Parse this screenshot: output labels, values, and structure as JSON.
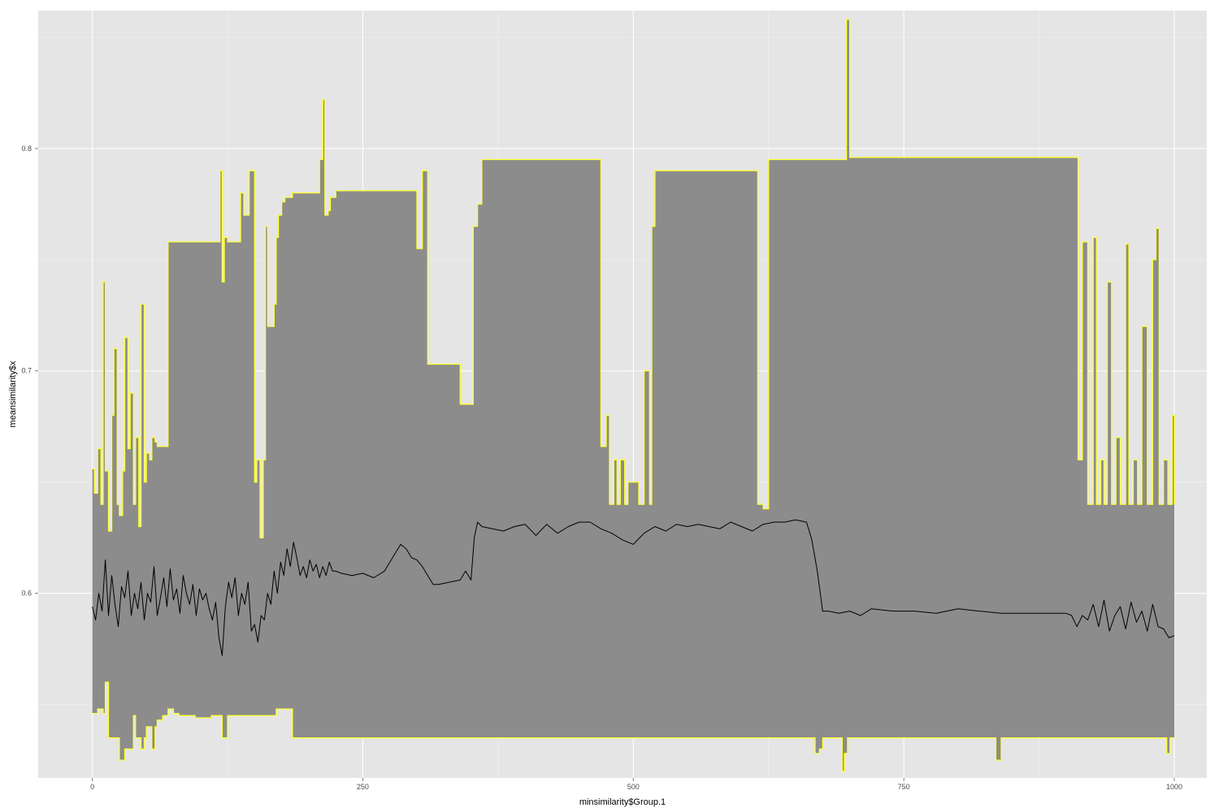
{
  "chart_data": {
    "type": "area",
    "xlabel": "minsimilarity$Group.1",
    "ylabel": "meansimilarity$x",
    "xlim": [
      -50,
      1030
    ],
    "ylim": [
      0.517,
      0.862
    ],
    "x_ticks": [
      0,
      250,
      500,
      750,
      1000
    ],
    "x_tick_labels": [
      "0",
      "250",
      "500",
      "750",
      "1000"
    ],
    "y_ticks": [
      0.6,
      0.7,
      0.8
    ],
    "y_tick_labels": [
      "0.6",
      "0.7",
      "0.8"
    ],
    "grid": true,
    "background_color": "#e5e5e5",
    "ribbon_fill_color": "#8c8c8c",
    "ribbon_outline_color": "#ffff33",
    "line_color": "#000000",
    "series": [
      {
        "role": "ribbon-upper",
        "x": [
          0,
          2,
          5,
          8,
          10,
          12,
          15,
          18,
          20,
          23,
          25,
          28,
          30,
          33,
          35,
          38,
          40,
          43,
          45,
          48,
          50,
          53,
          55,
          58,
          60,
          63,
          65,
          70,
          115,
          118,
          120,
          122,
          125,
          135,
          137,
          140,
          145,
          150,
          152,
          155,
          158,
          160,
          162,
          165,
          168,
          170,
          172,
          175,
          178,
          180,
          185,
          200,
          210,
          213,
          215,
          218,
          220,
          225,
          298,
          300,
          305,
          308,
          310,
          320,
          340,
          348,
          352,
          356,
          360,
          365,
          468,
          470,
          475,
          478,
          482,
          485,
          488,
          492,
          495,
          505,
          510,
          515,
          517,
          520,
          580,
          610,
          615,
          620,
          625,
          630,
          690,
          694,
          697,
          700,
          850,
          908,
          911,
          915,
          920,
          925,
          928,
          932,
          935,
          938,
          942,
          946,
          950,
          955,
          958,
          962,
          966,
          970,
          975,
          980,
          983,
          986,
          990,
          994,
          998,
          1000
        ],
        "y": [
          0.656,
          0.645,
          0.665,
          0.64,
          0.74,
          0.655,
          0.628,
          0.68,
          0.71,
          0.64,
          0.635,
          0.655,
          0.715,
          0.665,
          0.69,
          0.64,
          0.67,
          0.63,
          0.73,
          0.65,
          0.663,
          0.66,
          0.67,
          0.668,
          0.666,
          0.666,
          0.666,
          0.758,
          0.758,
          0.79,
          0.74,
          0.76,
          0.758,
          0.758,
          0.78,
          0.77,
          0.79,
          0.65,
          0.66,
          0.625,
          0.66,
          0.765,
          0.72,
          0.72,
          0.73,
          0.76,
          0.77,
          0.776,
          0.778,
          0.778,
          0.78,
          0.78,
          0.795,
          0.822,
          0.77,
          0.772,
          0.778,
          0.781,
          0.781,
          0.755,
          0.79,
          0.79,
          0.703,
          0.703,
          0.685,
          0.685,
          0.765,
          0.775,
          0.795,
          0.795,
          0.795,
          0.666,
          0.68,
          0.64,
          0.66,
          0.64,
          0.66,
          0.64,
          0.65,
          0.64,
          0.7,
          0.64,
          0.765,
          0.79,
          0.79,
          0.79,
          0.64,
          0.638,
          0.795,
          0.795,
          0.795,
          0.795,
          0.858,
          0.796,
          0.796,
          0.796,
          0.66,
          0.758,
          0.64,
          0.76,
          0.64,
          0.66,
          0.64,
          0.74,
          0.64,
          0.67,
          0.64,
          0.757,
          0.64,
          0.66,
          0.64,
          0.72,
          0.64,
          0.75,
          0.764,
          0.64,
          0.66,
          0.64,
          0.68,
          0.64
        ],
        "_name": ""
      },
      {
        "role": "ribbon-lower",
        "x": [
          0,
          5,
          10,
          12,
          15,
          20,
          25,
          30,
          35,
          38,
          40,
          45,
          48,
          50,
          55,
          58,
          60,
          65,
          70,
          75,
          80,
          90,
          95,
          100,
          110,
          115,
          120,
          125,
          140,
          150,
          160,
          170,
          180,
          185,
          200,
          400,
          600,
          660,
          665,
          668,
          670,
          672,
          675,
          690,
          693,
          695,
          698,
          700,
          800,
          830,
          835,
          840,
          900,
          980,
          990,
          993,
          996,
          1000
        ],
        "y": [
          0.546,
          0.548,
          0.546,
          0.56,
          0.535,
          0.535,
          0.525,
          0.53,
          0.53,
          0.545,
          0.535,
          0.53,
          0.535,
          0.54,
          0.53,
          0.54,
          0.543,
          0.545,
          0.548,
          0.546,
          0.545,
          0.545,
          0.544,
          0.544,
          0.545,
          0.545,
          0.535,
          0.545,
          0.545,
          0.545,
          0.545,
          0.548,
          0.548,
          0.535,
          0.535,
          0.535,
          0.535,
          0.535,
          0.535,
          0.528,
          0.528,
          0.53,
          0.535,
          0.535,
          0.52,
          0.528,
          0.535,
          0.535,
          0.535,
          0.535,
          0.525,
          0.535,
          0.535,
          0.535,
          0.535,
          0.528,
          0.535,
          0.535
        ],
        "_name": ""
      },
      {
        "role": "line",
        "x": [
          0,
          3,
          6,
          9,
          12,
          15,
          18,
          21,
          24,
          27,
          30,
          33,
          36,
          39,
          42,
          45,
          48,
          51,
          54,
          57,
          60,
          63,
          66,
          69,
          72,
          75,
          78,
          81,
          84,
          87,
          90,
          93,
          96,
          99,
          102,
          105,
          108,
          111,
          114,
          117,
          120,
          123,
          126,
          129,
          132,
          135,
          138,
          141,
          144,
          147,
          150,
          153,
          156,
          159,
          162,
          165,
          168,
          171,
          174,
          177,
          180,
          183,
          186,
          189,
          192,
          195,
          198,
          201,
          204,
          207,
          210,
          213,
          216,
          219,
          222,
          225,
          230,
          240,
          250,
          260,
          270,
          280,
          285,
          290,
          295,
          300,
          305,
          310,
          315,
          320,
          330,
          340,
          345,
          350,
          353,
          356,
          360,
          370,
          380,
          390,
          400,
          410,
          420,
          430,
          440,
          450,
          460,
          470,
          480,
          490,
          500,
          510,
          520,
          530,
          540,
          550,
          560,
          570,
          580,
          590,
          600,
          610,
          620,
          630,
          640,
          650,
          660,
          665,
          670,
          675,
          680,
          690,
          700,
          710,
          720,
          740,
          760,
          780,
          800,
          820,
          840,
          860,
          880,
          900,
          905,
          910,
          915,
          920,
          925,
          930,
          935,
          940,
          945,
          950,
          955,
          960,
          965,
          970,
          975,
          980,
          985,
          990,
          995,
          1000
        ],
        "y": [
          0.594,
          0.588,
          0.6,
          0.592,
          0.615,
          0.59,
          0.608,
          0.595,
          0.585,
          0.603,
          0.598,
          0.61,
          0.59,
          0.6,
          0.593,
          0.605,
          0.588,
          0.6,
          0.596,
          0.612,
          0.59,
          0.598,
          0.607,
          0.594,
          0.611,
          0.597,
          0.602,
          0.591,
          0.608,
          0.6,
          0.595,
          0.604,
          0.59,
          0.602,
          0.597,
          0.6,
          0.593,
          0.588,
          0.596,
          0.58,
          0.572,
          0.594,
          0.605,
          0.598,
          0.607,
          0.59,
          0.6,
          0.595,
          0.605,
          0.583,
          0.586,
          0.578,
          0.59,
          0.588,
          0.6,
          0.595,
          0.61,
          0.6,
          0.614,
          0.608,
          0.62,
          0.612,
          0.623,
          0.616,
          0.608,
          0.612,
          0.607,
          0.615,
          0.61,
          0.613,
          0.607,
          0.612,
          0.608,
          0.614,
          0.61,
          0.61,
          0.609,
          0.608,
          0.609,
          0.607,
          0.61,
          0.618,
          0.622,
          0.62,
          0.616,
          0.615,
          0.612,
          0.608,
          0.604,
          0.604,
          0.605,
          0.606,
          0.61,
          0.606,
          0.625,
          0.632,
          0.63,
          0.629,
          0.628,
          0.63,
          0.631,
          0.626,
          0.631,
          0.627,
          0.63,
          0.632,
          0.632,
          0.629,
          0.627,
          0.624,
          0.622,
          0.627,
          0.63,
          0.628,
          0.631,
          0.63,
          0.631,
          0.63,
          0.629,
          0.632,
          0.63,
          0.628,
          0.631,
          0.632,
          0.632,
          0.633,
          0.632,
          0.624,
          0.61,
          0.592,
          0.592,
          0.591,
          0.592,
          0.59,
          0.593,
          0.592,
          0.592,
          0.591,
          0.593,
          0.592,
          0.591,
          0.591,
          0.591,
          0.591,
          0.59,
          0.585,
          0.59,
          0.588,
          0.595,
          0.585,
          0.597,
          0.583,
          0.59,
          0.594,
          0.584,
          0.596,
          0.587,
          0.592,
          0.583,
          0.595,
          0.585,
          0.584,
          0.58,
          0.581
        ],
        "_name": ""
      }
    ]
  }
}
